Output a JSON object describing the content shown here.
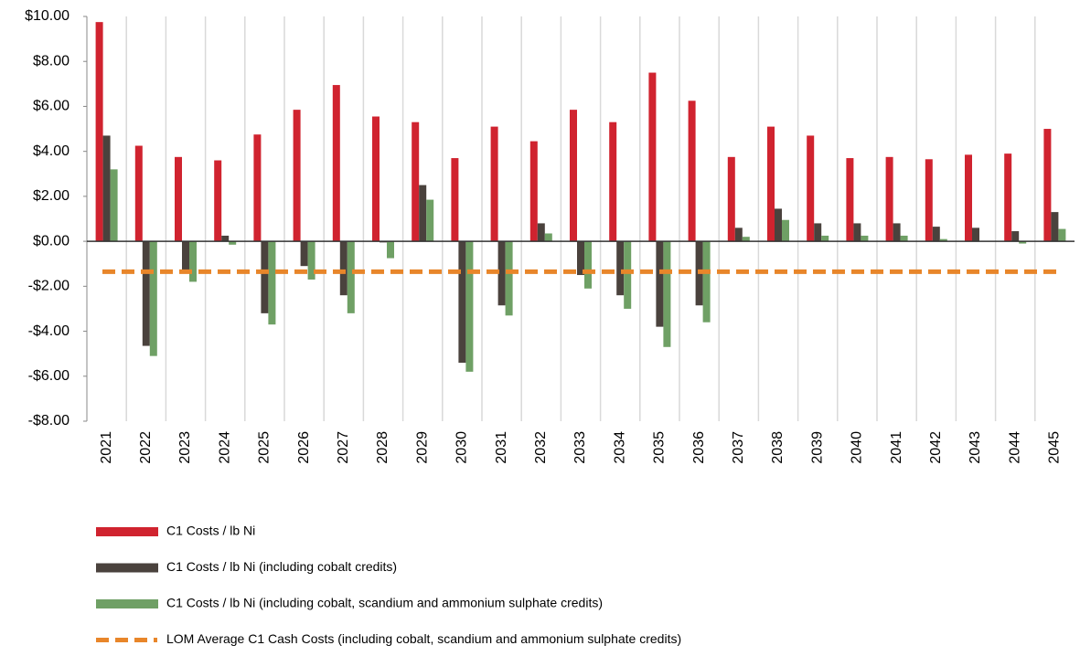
{
  "chart_data": {
    "type": "bar",
    "categories": [
      "2021",
      "2022",
      "2023",
      "2024",
      "2025",
      "2026",
      "2027",
      "2028",
      "2029",
      "2030",
      "2031",
      "2032",
      "2033",
      "2034",
      "2035",
      "2036",
      "2037",
      "2038",
      "2039",
      "2040",
      "2041",
      "2042",
      "2043",
      "2044",
      "2045"
    ],
    "series": [
      {
        "name": "C1 Costs / lb Ni",
        "color": "#d0232f",
        "type": "bar",
        "values": [
          9.75,
          4.25,
          3.75,
          3.6,
          4.75,
          5.85,
          6.95,
          5.55,
          5.3,
          3.7,
          5.1,
          4.45,
          5.85,
          5.3,
          7.5,
          6.25,
          3.75,
          5.1,
          4.7,
          3.7,
          3.75,
          3.65,
          3.85,
          3.9,
          5.0
        ]
      },
      {
        "name": "C1 Costs / lb Ni (including cobalt credits)",
        "color": "#4a423d",
        "type": "bar",
        "values": [
          4.7,
          -4.65,
          -1.35,
          0.25,
          -3.2,
          -1.1,
          -2.4,
          -0.05,
          2.5,
          -5.4,
          -2.85,
          0.8,
          -1.5,
          -2.4,
          -3.8,
          -2.85,
          0.6,
          1.45,
          0.8,
          0.8,
          0.8,
          0.65,
          0.6,
          0.45,
          1.3
        ]
      },
      {
        "name": "C1 Costs / lb Ni (including cobalt, scandium and ammonium sulphate credits)",
        "color": "#6fa065",
        "type": "bar",
        "values": [
          3.2,
          -5.1,
          -1.8,
          -0.15,
          -3.7,
          -1.7,
          -3.2,
          -0.75,
          1.85,
          -5.8,
          -3.3,
          0.35,
          -2.1,
          -3.0,
          -4.7,
          -3.6,
          0.2,
          0.95,
          0.25,
          0.25,
          0.25,
          0.1,
          0,
          -0.1,
          0.55
        ]
      },
      {
        "name": "LOM Average C1 Cash Costs (including cobalt, scandium and ammonium sulphate credits)",
        "color": "#e8862a",
        "type": "line",
        "values": [
          -1.35,
          -1.35,
          -1.35,
          -1.35,
          -1.35,
          -1.35,
          -1.35,
          -1.35,
          -1.35,
          -1.35,
          -1.35,
          -1.35,
          -1.35,
          -1.35,
          -1.35,
          -1.35,
          -1.35,
          -1.35,
          -1.35,
          -1.35,
          -1.35,
          -1.35,
          -1.35,
          -1.35,
          -1.35
        ]
      }
    ],
    "ylim": [
      -8,
      10
    ],
    "yticks": [
      {
        "value": -8,
        "label": "-$8.00"
      },
      {
        "value": -6,
        "label": "-$6.00"
      },
      {
        "value": -4,
        "label": "-$4.00"
      },
      {
        "value": -2,
        "label": "-$2.00"
      },
      {
        "value": 0,
        "label": "$0.00"
      },
      {
        "value": 2,
        "label": "$2.00"
      },
      {
        "value": 4,
        "label": "$4.00"
      },
      {
        "value": 6,
        "label": "$6.00"
      },
      {
        "value": 8,
        "label": "$8.00"
      },
      {
        "value": 10,
        "label": "$10.00"
      }
    ],
    "grid": true
  }
}
